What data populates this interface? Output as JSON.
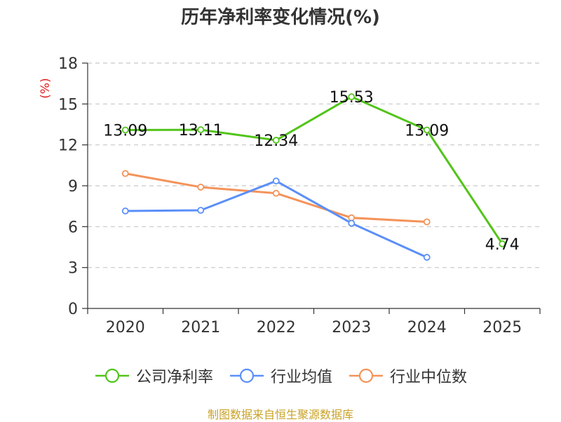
{
  "chart_data": {
    "type": "line",
    "title": "历年净利率变化情况(%)",
    "ylabel": "(%)",
    "xlabel": "",
    "categories": [
      "2020",
      "2021",
      "2022",
      "2023",
      "2024",
      "2025"
    ],
    "ylim": [
      0,
      18
    ],
    "yticks": [
      0,
      3,
      6,
      9,
      12,
      15,
      18
    ],
    "grid": "horizontal-dashed",
    "legend_position": "bottom",
    "series": [
      {
        "name": "公司净利率",
        "color": "#52c41a",
        "values": [
          13.09,
          13.11,
          12.34,
          15.53,
          13.09,
          4.74
        ],
        "labels": [
          "13.09",
          "13.11",
          "12.34",
          "15.53",
          "13.09",
          "4.74"
        ]
      },
      {
        "name": "行业均值",
        "color": "#5b8ff9",
        "values": [
          7.15,
          7.2,
          9.35,
          6.25,
          3.75,
          null
        ]
      },
      {
        "name": "行业中位数",
        "color": "#f4935a",
        "values": [
          9.9,
          8.9,
          8.45,
          6.65,
          6.35,
          null
        ]
      }
    ]
  },
  "footer": "制图数据来自恒生聚源数据库"
}
